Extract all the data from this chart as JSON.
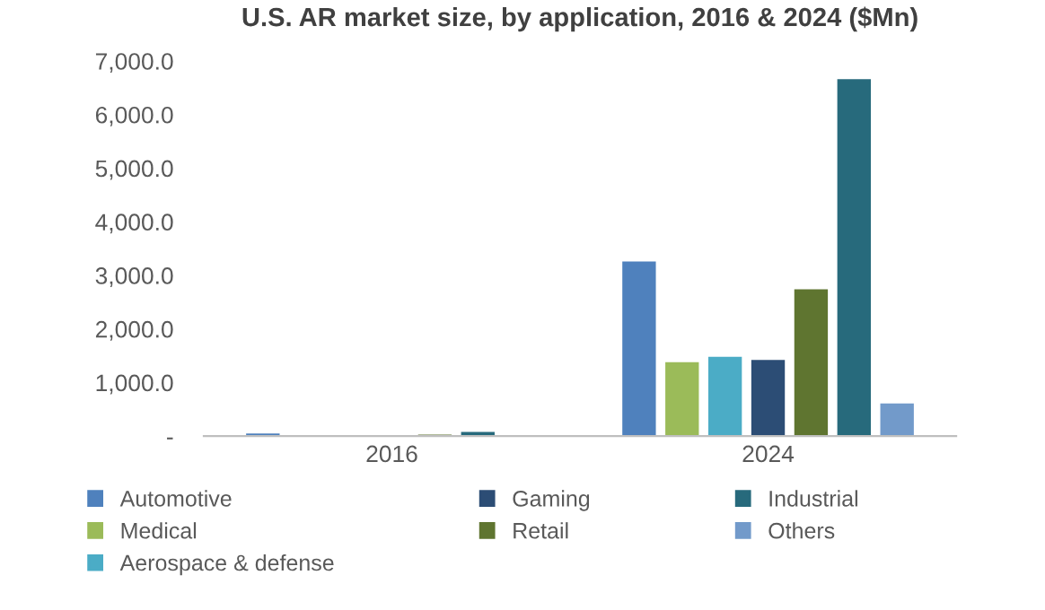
{
  "chart_data": {
    "type": "bar",
    "title": "U.S. AR market size, by application, 2016 & 2024 ($Mn)",
    "categories": [
      "2016",
      "2024"
    ],
    "series": [
      {
        "name": "Automotive",
        "color": "#4f81bd",
        "values": [
          50,
          3260
        ]
      },
      {
        "name": "Medical",
        "color": "#9bbb59",
        "values": [
          null,
          1380
        ]
      },
      {
        "name": "Aerospace & defense",
        "color": "#4bacc6",
        "values": [
          null,
          1480
        ]
      },
      {
        "name": "Gaming",
        "color": "#2c4d75",
        "values": [
          null,
          1420
        ]
      },
      {
        "name": "Retail",
        "color": "#5f7530",
        "values": [
          30,
          2740
        ]
      },
      {
        "name": "Industrial",
        "color": "#276a7c",
        "values": [
          80,
          6660
        ]
      },
      {
        "name": "Others",
        "color": "#729aca",
        "values": [
          null,
          610
        ]
      }
    ],
    "ylim": [
      0,
      7000
    ],
    "yticks": [
      {
        "value": 0,
        "label": "-"
      },
      {
        "value": 1000,
        "label": "1,000.0"
      },
      {
        "value": 2000,
        "label": "2,000.0"
      },
      {
        "value": 3000,
        "label": "3,000.0"
      },
      {
        "value": 4000,
        "label": "4,000.0"
      },
      {
        "value": 5000,
        "label": "5,000.0"
      },
      {
        "value": 6000,
        "label": "6,000.0"
      },
      {
        "value": 7000,
        "label": "7,000.0"
      }
    ],
    "grid": false,
    "legend": "bottom"
  }
}
